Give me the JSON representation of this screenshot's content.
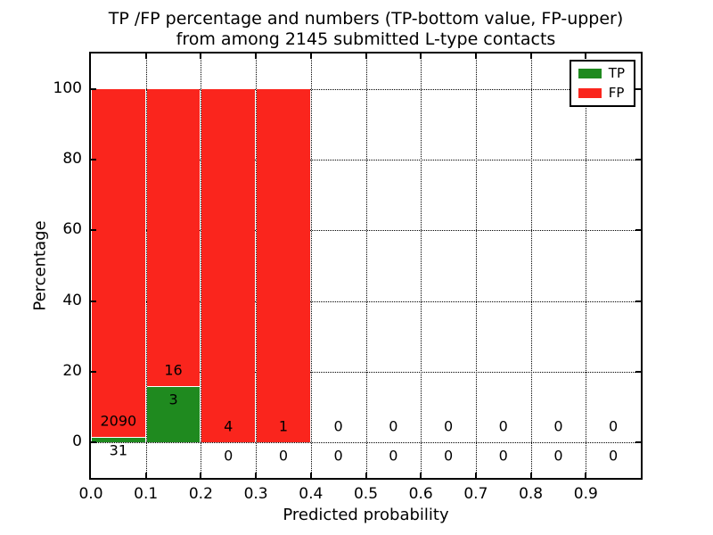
{
  "title": {
    "line1": "TP /FP percentage and numbers (TP-bottom value, FP-upper)",
    "line2": "from among 2145 submitted L-type contacts"
  },
  "axes": {
    "xlabel": "Predicted probability",
    "ylabel": "Percentage",
    "x_tick_labels": [
      "0.0",
      "0.1",
      "0.2",
      "0.3",
      "0.4",
      "0.5",
      "0.6",
      "0.7",
      "0.8",
      "0.9"
    ],
    "y_tick_labels": [
      "0",
      "20",
      "40",
      "60",
      "80",
      "100"
    ],
    "xlim": [
      0,
      1.0
    ],
    "ylim": [
      -10,
      110
    ],
    "grid": true,
    "grid_style": "dotted"
  },
  "legend": {
    "position": "upper right",
    "items": [
      {
        "name": "TP",
        "label": "TP",
        "color": "#1f8a1f"
      },
      {
        "name": "FP",
        "label": "FP",
        "color": "#fa251d"
      }
    ]
  },
  "chart_data": {
    "type": "bar",
    "stacked": true,
    "unit": "percent of bin total (TP+FP), stacked to 100",
    "bin_width": 0.1,
    "bin_starts": [
      0.0,
      0.1,
      0.2,
      0.3,
      0.4,
      0.5,
      0.6,
      0.7,
      0.8,
      0.9
    ],
    "series": [
      {
        "name": "TP",
        "color": "#1f8a1f",
        "counts": [
          31,
          3,
          0,
          0,
          0,
          0,
          0,
          0,
          0,
          0
        ]
      },
      {
        "name": "FP",
        "color": "#fa251d",
        "counts": [
          2090,
          16,
          4,
          1,
          0,
          0,
          0,
          0,
          0,
          0
        ]
      }
    ],
    "tp_percent_by_bin": [
      1.46,
      15.79,
      0,
      0,
      0,
      0,
      0,
      0,
      0,
      0
    ],
    "total_contacts": 2145,
    "title": "TP /FP percentage and numbers (TP-bottom value, FP-upper) from among 2145 submitted L-type contacts",
    "xlabel": "Predicted probability",
    "ylabel": "Percentage"
  }
}
